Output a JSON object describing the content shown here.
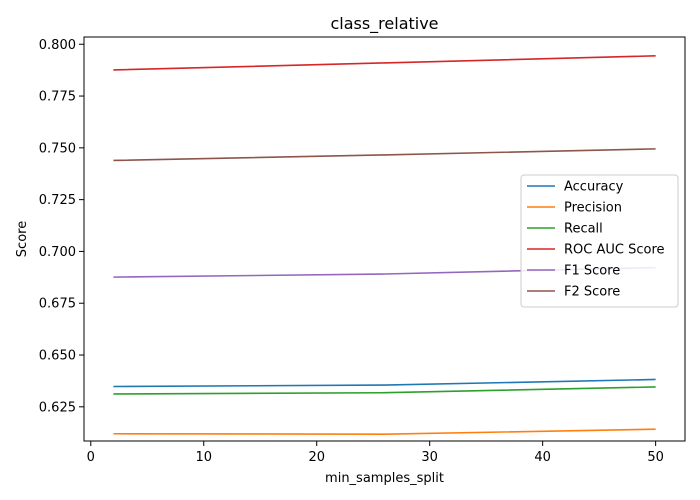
{
  "chart_data": {
    "type": "line",
    "title": "class_relative",
    "xlabel": "min_samples_split",
    "ylabel": "Score",
    "x": [
      2,
      26,
      50
    ],
    "xlim": [
      -0.6,
      52.6
    ],
    "ylim": [
      0.6085,
      0.8035
    ],
    "xticks": [
      0,
      10,
      20,
      30,
      40,
      50
    ],
    "yticks": [
      0.625,
      0.65,
      0.675,
      0.7,
      0.725,
      0.75,
      0.775,
      0.8
    ],
    "ytick_labels": [
      "0.625",
      "0.650",
      "0.675",
      "0.700",
      "0.725",
      "0.750",
      "0.775",
      "0.800"
    ],
    "grid": false,
    "legend_position": "center-right",
    "series": [
      {
        "name": "Accuracy",
        "color": "#1f77b4",
        "values": [
          0.6348,
          0.6355,
          0.6382
        ]
      },
      {
        "name": "Precision",
        "color": "#ff7f0e",
        "values": [
          0.612,
          0.6118,
          0.6142
        ]
      },
      {
        "name": "Recall",
        "color": "#2ca02c",
        "values": [
          0.6312,
          0.6318,
          0.6346
        ]
      },
      {
        "name": "ROC AUC Score",
        "color": "#d62728",
        "values": [
          0.7876,
          0.791,
          0.7944
        ]
      },
      {
        "name": "F1 Score",
        "color": "#9467bd",
        "values": [
          0.6876,
          0.6891,
          0.6922
        ]
      },
      {
        "name": "F2 Score",
        "color": "#8c564b",
        "values": [
          0.7439,
          0.7466,
          0.7495
        ]
      }
    ]
  }
}
